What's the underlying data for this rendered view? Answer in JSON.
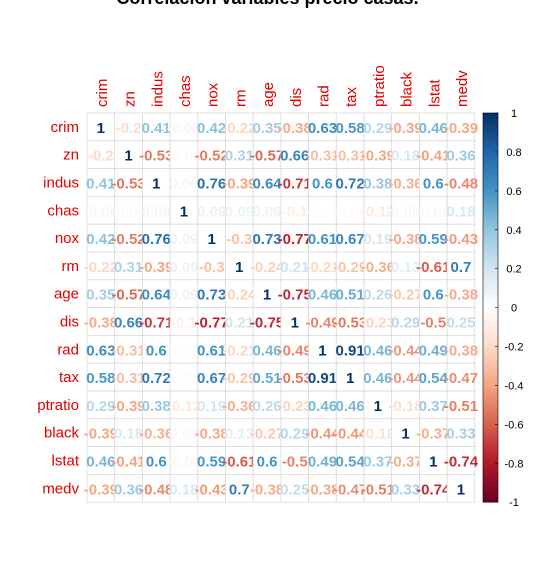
{
  "chart_data": {
    "type": "heatmap",
    "title": "Correlación variables precio casas.",
    "variables": [
      "crim",
      "zn",
      "indus",
      "chas",
      "nox",
      "rm",
      "age",
      "dis",
      "rad",
      "tax",
      "ptratio",
      "black",
      "lstat",
      "medv"
    ],
    "matrix": [
      [
        1,
        -0.2,
        0.41,
        -0.06,
        0.42,
        -0.22,
        0.35,
        -0.38,
        0.63,
        0.58,
        0.29,
        -0.39,
        0.46,
        -0.39
      ],
      [
        -0.2,
        1,
        -0.53,
        -0.04,
        -0.52,
        0.31,
        -0.57,
        0.66,
        -0.31,
        -0.31,
        -0.39,
        0.18,
        -0.41,
        0.36
      ],
      [
        0.41,
        -0.53,
        1,
        0.06,
        0.76,
        -0.39,
        0.64,
        -0.71,
        0.6,
        0.72,
        0.38,
        -0.36,
        0.6,
        -0.48
      ],
      [
        -0.06,
        -0.04,
        0.06,
        1,
        0.09,
        0.09,
        0.09,
        -0.1,
        -0.01,
        -0.04,
        -0.12,
        0.05,
        -0.05,
        0.18
      ],
      [
        0.42,
        -0.52,
        0.76,
        0.09,
        1,
        -0.3,
        0.73,
        -0.77,
        0.61,
        0.67,
        0.19,
        -0.38,
        0.59,
        -0.43
      ],
      [
        -0.22,
        0.31,
        -0.39,
        0.09,
        -0.3,
        1,
        -0.24,
        0.21,
        -0.21,
        -0.29,
        -0.36,
        0.13,
        -0.61,
        0.7
      ],
      [
        0.35,
        -0.57,
        0.64,
        0.09,
        0.73,
        -0.24,
        1,
        -0.75,
        0.46,
        0.51,
        0.26,
        -0.27,
        0.6,
        -0.38
      ],
      [
        -0.38,
        0.66,
        -0.71,
        -0.1,
        -0.77,
        0.21,
        -0.75,
        1,
        -0.49,
        -0.53,
        -0.23,
        0.29,
        -0.5,
        0.25
      ],
      [
        0.63,
        -0.31,
        0.6,
        -0.01,
        0.61,
        -0.21,
        0.46,
        -0.49,
        1,
        0.91,
        0.46,
        -0.44,
        0.49,
        -0.38
      ],
      [
        0.58,
        -0.31,
        0.72,
        -0.04,
        0.67,
        -0.29,
        0.51,
        -0.53,
        0.91,
        1,
        0.46,
        -0.44,
        0.54,
        -0.47
      ],
      [
        0.29,
        -0.39,
        0.38,
        -0.12,
        0.19,
        -0.36,
        0.26,
        -0.23,
        0.46,
        0.46,
        1,
        -0.18,
        0.37,
        -0.51
      ],
      [
        -0.39,
        0.18,
        -0.36,
        0.05,
        -0.38,
        0.13,
        -0.27,
        0.29,
        -0.44,
        -0.44,
        -0.18,
        1,
        -0.37,
        0.33
      ],
      [
        0.46,
        -0.41,
        0.6,
        -0.05,
        0.59,
        -0.61,
        0.6,
        -0.5,
        0.49,
        0.54,
        0.37,
        -0.37,
        1,
        -0.74
      ],
      [
        -0.39,
        0.36,
        -0.48,
        0.18,
        -0.43,
        0.7,
        -0.38,
        0.25,
        -0.38,
        -0.47,
        -0.51,
        0.33,
        -0.74,
        1
      ]
    ],
    "color_scale": {
      "min": -1,
      "max": 1,
      "ticks": [
        "1",
        "0.8",
        "0.6",
        "0.4",
        "0.2",
        "0",
        "-0.2",
        "-0.4",
        "-0.6",
        "-0.8",
        "-1"
      ],
      "colors": [
        "#67001f",
        "#b2182b",
        "#d6604d",
        "#f4a582",
        "#fddbc7",
        "#ffffff",
        "#d1e5f0",
        "#92c5de",
        "#4393c3",
        "#2166ac",
        "#053061"
      ]
    },
    "label_color": "#e00000"
  }
}
